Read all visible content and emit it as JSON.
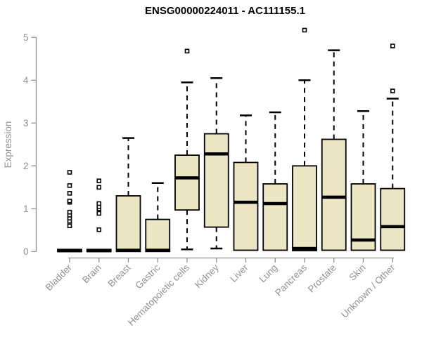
{
  "chart_data": {
    "type": "boxplot",
    "title": "ENSG00000224011 - AC111155.1",
    "ylabel": "Expression",
    "xlabel": "",
    "ylim": [
      0,
      5
    ],
    "yticks": [
      0,
      1,
      2,
      3,
      4,
      5
    ],
    "grid": false,
    "legend": "none",
    "categories": [
      "Bladder",
      "Brain",
      "Breast",
      "Gastric",
      "Hematopoietic cells",
      "Kidney",
      "Liver",
      "Lung",
      "Pancreas",
      "Prostate",
      "Skin",
      "Unknown / Other"
    ],
    "series": [
      {
        "category": "Bladder",
        "q1": 0.0,
        "median": 0.02,
        "q3": 0.05,
        "whisker_low": 0.0,
        "whisker_high": 0.05,
        "outliers": [
          0.6,
          0.71,
          0.78,
          0.85,
          0.92,
          1.15,
          1.18,
          1.36,
          1.54,
          1.85
        ]
      },
      {
        "category": "Brain",
        "q1": 0.0,
        "median": 0.02,
        "q3": 0.05,
        "whisker_low": 0.0,
        "whisker_high": 0.05,
        "outliers": [
          0.51,
          0.89,
          1.0,
          1.05,
          1.12,
          1.5,
          1.65
        ]
      },
      {
        "category": "Breast",
        "q1": 0.0,
        "median": 0.03,
        "q3": 1.3,
        "whisker_low": 0.0,
        "whisker_high": 2.65,
        "outliers": []
      },
      {
        "category": "Gastric",
        "q1": 0.0,
        "median": 0.03,
        "q3": 0.75,
        "whisker_low": 0.0,
        "whisker_high": 1.6,
        "outliers": []
      },
      {
        "category": "Hematopoietic cells",
        "q1": 0.97,
        "median": 1.72,
        "q3": 2.25,
        "whisker_low": 0.05,
        "whisker_high": 3.95,
        "outliers": [
          4.68
        ]
      },
      {
        "category": "Kidney",
        "q1": 0.57,
        "median": 2.28,
        "q3": 2.75,
        "whisker_low": 0.07,
        "whisker_high": 4.05,
        "outliers": []
      },
      {
        "category": "Liver",
        "q1": 0.03,
        "median": 1.15,
        "q3": 2.08,
        "whisker_low": 0.03,
        "whisker_high": 3.18,
        "outliers": []
      },
      {
        "category": "Lung",
        "q1": 0.03,
        "median": 1.12,
        "q3": 1.58,
        "whisker_low": 0.03,
        "whisker_high": 3.25,
        "outliers": []
      },
      {
        "category": "Pancreas",
        "q1": 0.02,
        "median": 0.07,
        "q3": 2.0,
        "whisker_low": 0.02,
        "whisker_high": 4.0,
        "outliers": [
          5.17
        ]
      },
      {
        "category": "Prostate",
        "q1": 0.03,
        "median": 1.27,
        "q3": 2.62,
        "whisker_low": 0.03,
        "whisker_high": 4.7,
        "outliers": []
      },
      {
        "category": "Skin",
        "q1": 0.03,
        "median": 0.27,
        "q3": 1.58,
        "whisker_low": 0.03,
        "whisker_high": 3.28,
        "outliers": []
      },
      {
        "category": "Unknown / Other",
        "q1": 0.03,
        "median": 0.58,
        "q3": 1.47,
        "whisker_low": 0.03,
        "whisker_high": 3.57,
        "outliers": [
          3.75,
          4.8
        ]
      }
    ],
    "colors": {
      "background": "#ffffff",
      "box_fill": "#ede6c5",
      "box_border": "#000000",
      "median": "#000000",
      "whisker": "#000000",
      "outlier_border": "#000000",
      "outlier_fill": "#ffffff",
      "axis": "#919191",
      "tick_label": "#919191",
      "axis_label": "#919191",
      "title": "#000000"
    }
  }
}
